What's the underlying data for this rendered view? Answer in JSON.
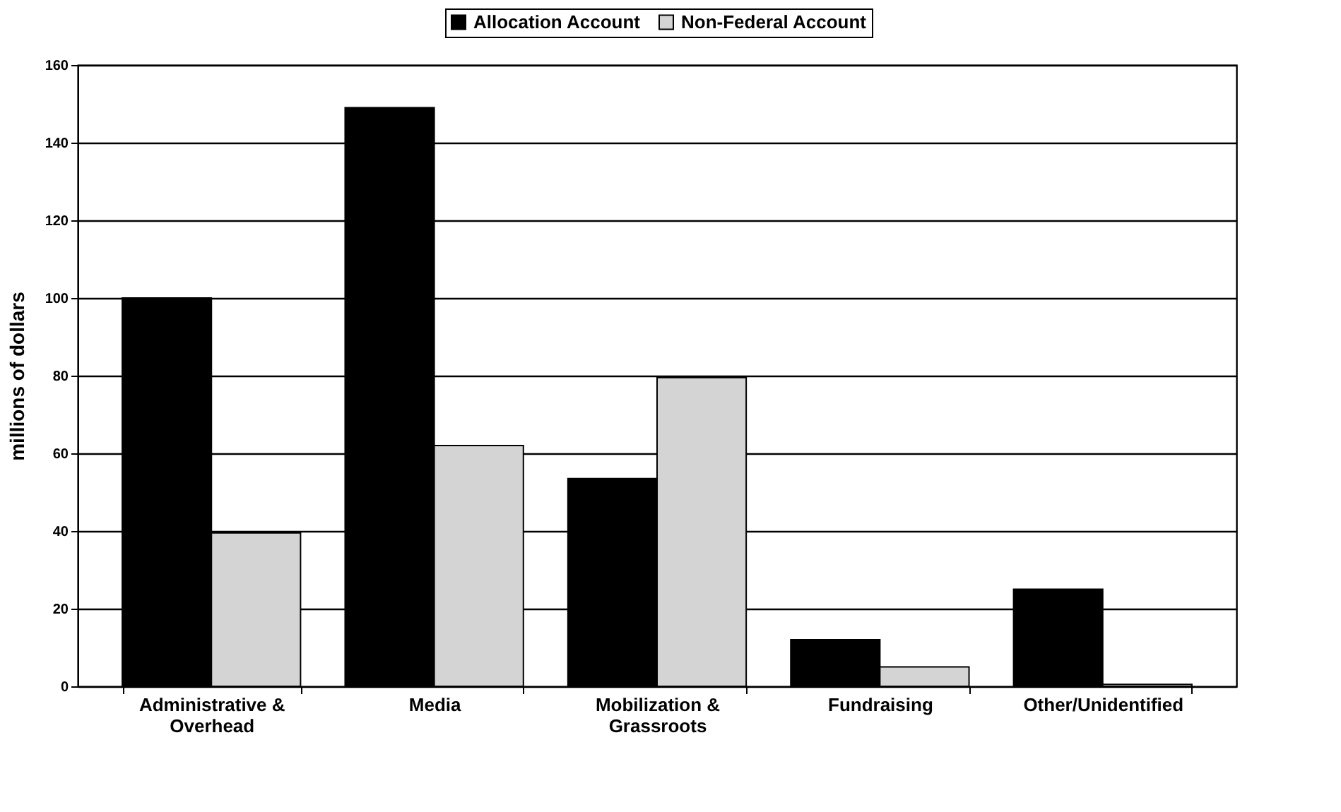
{
  "chart_data": {
    "type": "bar",
    "ylabel": "millions of dollars",
    "categories": [
      "Administrative &\nOverhead",
      "Media",
      "Mobilization &\nGrassroots",
      "Fundraising",
      "Other/Unidentified"
    ],
    "series": [
      {
        "name": "Allocation Account",
        "color": "#000000",
        "values": [
          100,
          149,
          53.5,
          12,
          25
        ]
      },
      {
        "name": "Non-Federal Account",
        "color": "#d4d4d4",
        "values": [
          39.5,
          62,
          79.5,
          5,
          0.5
        ]
      }
    ],
    "ylim": [
      0,
      160
    ],
    "yticks": [
      0,
      20,
      40,
      60,
      80,
      100,
      120,
      140,
      160
    ],
    "grid": "y",
    "legend": "top"
  }
}
